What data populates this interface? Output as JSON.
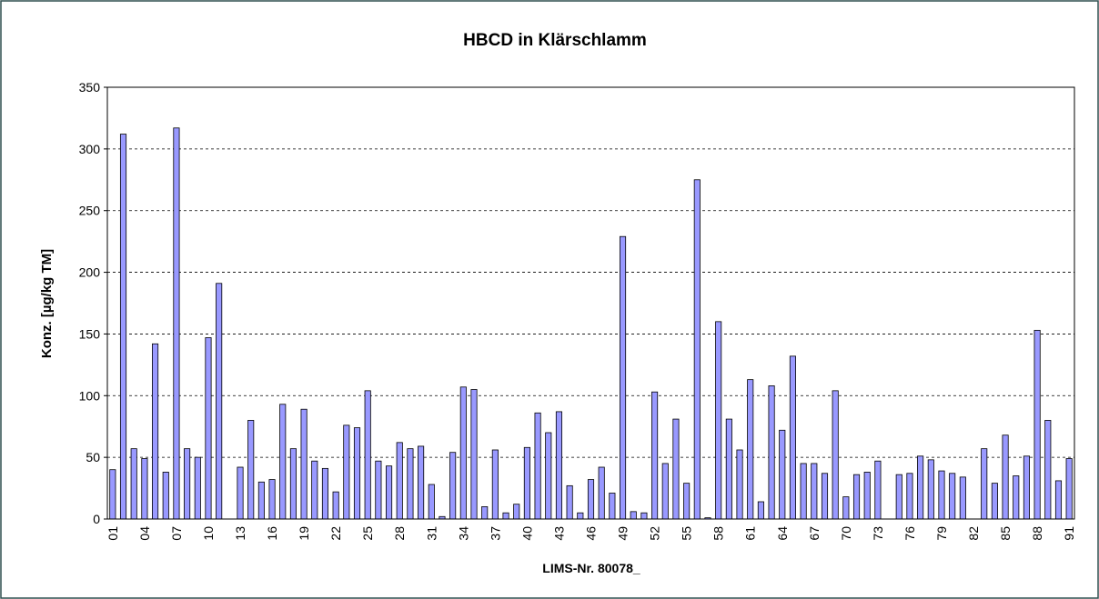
{
  "chart_data": {
    "type": "bar",
    "title": "HBCD in Klärschlamm",
    "x_label": "LIMS-Nr. 80078_",
    "y_label": "Konz. [µg/kg TM]",
    "categories": [
      "01",
      null,
      null,
      "04",
      null,
      null,
      "07",
      null,
      null,
      "10",
      null,
      null,
      "13",
      null,
      null,
      "16",
      null,
      null,
      "19",
      null,
      null,
      "22",
      null,
      null,
      "25",
      null,
      null,
      "28",
      null,
      null,
      "31",
      null,
      null,
      "34",
      null,
      null,
      "37",
      null,
      null,
      "40",
      null,
      null,
      "43",
      null,
      null,
      "46",
      null,
      null,
      "49",
      null,
      null,
      "52",
      null,
      null,
      "55",
      null,
      null,
      "58",
      null,
      null,
      "61",
      null,
      null,
      "64",
      null,
      null,
      "67",
      null,
      null,
      "70",
      null,
      null,
      "73",
      null,
      null,
      "76",
      null,
      null,
      "79",
      null,
      null,
      "82",
      null,
      null,
      "85",
      null,
      null,
      "88",
      null,
      null,
      "91"
    ],
    "values": [
      40,
      312,
      57,
      49,
      142,
      38,
      317,
      57,
      50,
      147,
      191,
      0,
      42,
      80,
      30,
      32,
      93,
      57,
      89,
      47,
      41,
      22,
      76,
      74,
      104,
      47,
      43,
      62,
      57,
      59,
      28,
      2,
      54,
      107,
      105,
      10,
      56,
      5,
      12,
      58,
      86,
      70,
      87,
      27,
      5,
      32,
      42,
      21,
      229,
      6,
      5,
      103,
      45,
      81,
      29,
      275,
      1,
      160,
      81,
      56,
      113,
      14,
      108,
      72,
      132,
      45,
      45,
      37,
      104,
      18,
      36,
      38,
      47,
      0,
      36,
      37,
      51,
      48,
      39,
      37,
      34,
      0,
      57,
      29,
      68,
      35,
      51,
      153,
      80,
      31,
      49
    ],
    "color": "#9999ff",
    "ylim": [
      0,
      350
    ],
    "yticks": [
      0,
      50,
      100,
      150,
      200,
      250,
      300,
      350
    ],
    "grid": true
  }
}
